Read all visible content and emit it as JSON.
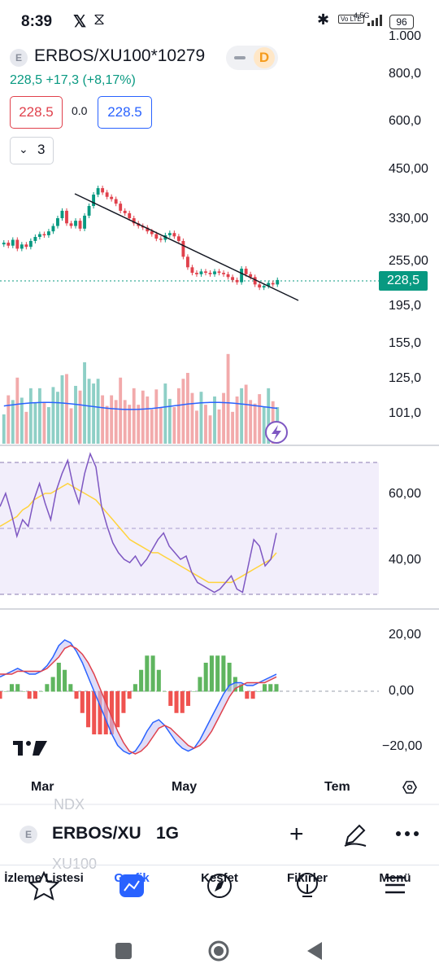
{
  "status_bar": {
    "time": "8:39",
    "x_icon": "𝕏",
    "network": "4.5G",
    "volte": "Vo LTE",
    "battery": "96"
  },
  "header": {
    "symbol_badge": "E",
    "symbol": "ERBOS/XU100*10279",
    "mode_badge": "D",
    "last": "228,5",
    "change": "+17,3",
    "change_pct": "(+8,17%)",
    "sell": "228.5",
    "spread": "0.0",
    "buy": "228.5",
    "indicator_count": "3"
  },
  "price_axis": {
    "labels": [
      "1.000",
      "800,0",
      "600,0",
      "450,00",
      "330,00",
      "255,00",
      "195,0"
    ],
    "current": "228,5"
  },
  "volume_axis": {
    "labels": [
      "155,0",
      "125,0",
      "101,0"
    ]
  },
  "rsi_axis": {
    "labels": [
      "60,00",
      "40,00"
    ]
  },
  "macd_axis": {
    "labels": [
      "20,00",
      "0,00",
      "−20,00"
    ]
  },
  "time_axis": {
    "labels": [
      "Mar",
      "May",
      "Tem"
    ]
  },
  "colors": {
    "up": "#089981",
    "down": "#e0414c",
    "accent": "#2962ff",
    "rsi": "#7e57c2",
    "rsi_ma": "#ffd33c"
  },
  "bottom_bar": {
    "badge": "E",
    "symbol": "ERBOS/XU",
    "interval": "1G",
    "ghost_above": "NDX",
    "ghost_below": "XU100"
  },
  "nav": [
    {
      "label": "İzleme Listesi",
      "icon": "star-icon"
    },
    {
      "label": "Grafik",
      "icon": "chart-icon"
    },
    {
      "label": "Keşfet",
      "icon": "compass-icon"
    },
    {
      "label": "Fikirler",
      "icon": "lightbulb-icon"
    },
    {
      "label": "Menü",
      "icon": "menu-icon"
    }
  ],
  "chart_data": {
    "type": "candlestick",
    "symbol": "ERBOS/XU100*10279",
    "last": 228.5,
    "x_ticks": [
      "Mar",
      "May",
      "Tem"
    ],
    "price_axis_ticks": [
      1000,
      800,
      600,
      450,
      330,
      255,
      195
    ],
    "close": [
      285,
      280,
      290,
      275,
      282,
      278,
      288,
      295,
      300,
      298,
      305,
      315,
      330,
      345,
      320,
      315,
      325,
      310,
      335,
      355,
      380,
      395,
      385,
      375,
      370,
      360,
      345,
      340,
      330,
      320,
      315,
      312,
      305,
      300,
      292,
      290,
      298,
      302,
      296,
      288,
      262,
      246,
      238,
      236,
      240,
      238,
      236,
      240,
      238,
      236,
      232,
      228,
      225,
      244,
      236,
      232,
      222,
      218,
      220,
      224,
      222,
      228
    ],
    "volume_axis_ticks": [
      155,
      125,
      101
    ],
    "rsi": [
      56,
      60,
      54,
      47,
      52,
      50,
      58,
      63,
      57,
      52,
      61,
      66,
      70,
      62,
      57,
      66,
      72,
      68,
      56,
      50,
      45,
      42,
      40,
      39,
      41,
      38,
      40,
      43,
      46,
      48,
      44,
      42,
      40,
      41,
      36,
      33,
      32,
      31,
      30,
      31,
      33,
      35,
      31,
      30,
      38,
      46,
      44,
      38,
      40,
      48
    ],
    "rsi_ma": [
      50,
      51,
      52,
      53,
      55,
      56,
      58,
      59,
      60,
      60,
      61,
      62,
      63,
      62,
      61,
      60,
      59,
      58,
      56,
      54,
      52,
      50,
      48,
      46,
      45,
      44,
      43,
      42,
      42,
      41,
      40,
      39,
      38,
      37,
      36,
      35,
      34,
      33,
      33,
      33,
      33,
      33,
      34,
      35,
      36,
      37,
      38,
      39,
      40,
      42
    ],
    "rsi_axis_ticks": [
      60,
      40
    ],
    "macd": [
      5,
      6,
      7,
      8,
      7,
      6,
      6,
      7,
      9,
      12,
      16,
      18,
      17,
      14,
      10,
      5,
      0,
      -5,
      -10,
      -15,
      -19,
      -21,
      -22,
      -21,
      -18,
      -14,
      -11,
      -10,
      -12,
      -15,
      -18,
      -20,
      -21,
      -20,
      -17,
      -13,
      -9,
      -5,
      -1,
      2,
      3,
      3,
      2,
      2,
      3,
      4,
      5,
      6
    ],
    "macd_signal": [
      6,
      6,
      6,
      7,
      7,
      7,
      7,
      7,
      8,
      10,
      12,
      15,
      16,
      15,
      13,
      10,
      6,
      1,
      -4,
      -9,
      -14,
      -18,
      -21,
      -22,
      -21,
      -19,
      -16,
      -13,
      -12,
      -13,
      -15,
      -17,
      -19,
      -20,
      -19,
      -17,
      -14,
      -10,
      -6,
      -2,
      1,
      2,
      3,
      3,
      3,
      3,
      4,
      5
    ],
    "macd_axis_ticks": [
      20,
      0,
      -20
    ]
  }
}
